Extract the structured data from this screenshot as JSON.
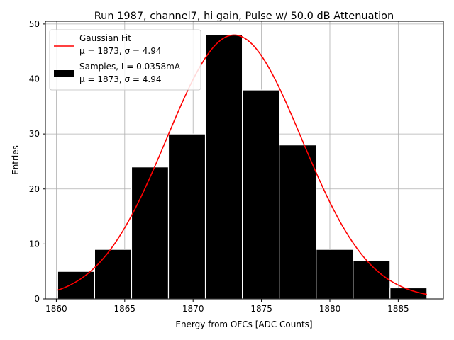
{
  "chart_data": {
    "type": "bar",
    "title": "Run 1987, channel7, hi gain, Pulse w/ 50.0 dB Attenuation",
    "xlabel": "Energy from OFCs [ADC Counts]",
    "ylabel": "Entries",
    "xlim": [
      1859.2,
      1888.3
    ],
    "ylim": [
      0,
      50.5
    ],
    "xticks": [
      1860,
      1865,
      1870,
      1875,
      1880,
      1885
    ],
    "yticks": [
      0,
      10,
      20,
      30,
      40,
      50
    ],
    "grid": true,
    "legend_position": "top-left",
    "bins": [
      {
        "x0": 1860.1,
        "x1": 1862.8,
        "value": 5
      },
      {
        "x0": 1862.8,
        "x1": 1865.5,
        "value": 9
      },
      {
        "x0": 1865.5,
        "x1": 1868.2,
        "value": 24
      },
      {
        "x0": 1868.2,
        "x1": 1870.9,
        "value": 30
      },
      {
        "x0": 1870.9,
        "x1": 1873.6,
        "value": 48
      },
      {
        "x0": 1873.6,
        "x1": 1876.3,
        "value": 38
      },
      {
        "x0": 1876.3,
        "x1": 1879.0,
        "value": 28
      },
      {
        "x0": 1879.0,
        "x1": 1881.7,
        "value": 9
      },
      {
        "x0": 1881.7,
        "x1": 1884.4,
        "value": 7
      },
      {
        "x0": 1884.4,
        "x1": 1887.1,
        "value": 2
      }
    ],
    "series": [
      {
        "name": "Gaussian Fit",
        "stats": "μ = 1873, σ = 4.94",
        "type": "line",
        "color": "#ff0000",
        "mu": 1873,
        "sigma": 4.94,
        "amplitude": 48,
        "x_range": [
          1860.1,
          1887.1
        ]
      },
      {
        "name": "Samples, I = 0.0358mA",
        "stats": "μ = 1873, σ = 4.94",
        "type": "bar",
        "color": "#000000",
        "edgecolor": "#ffffff"
      }
    ]
  }
}
